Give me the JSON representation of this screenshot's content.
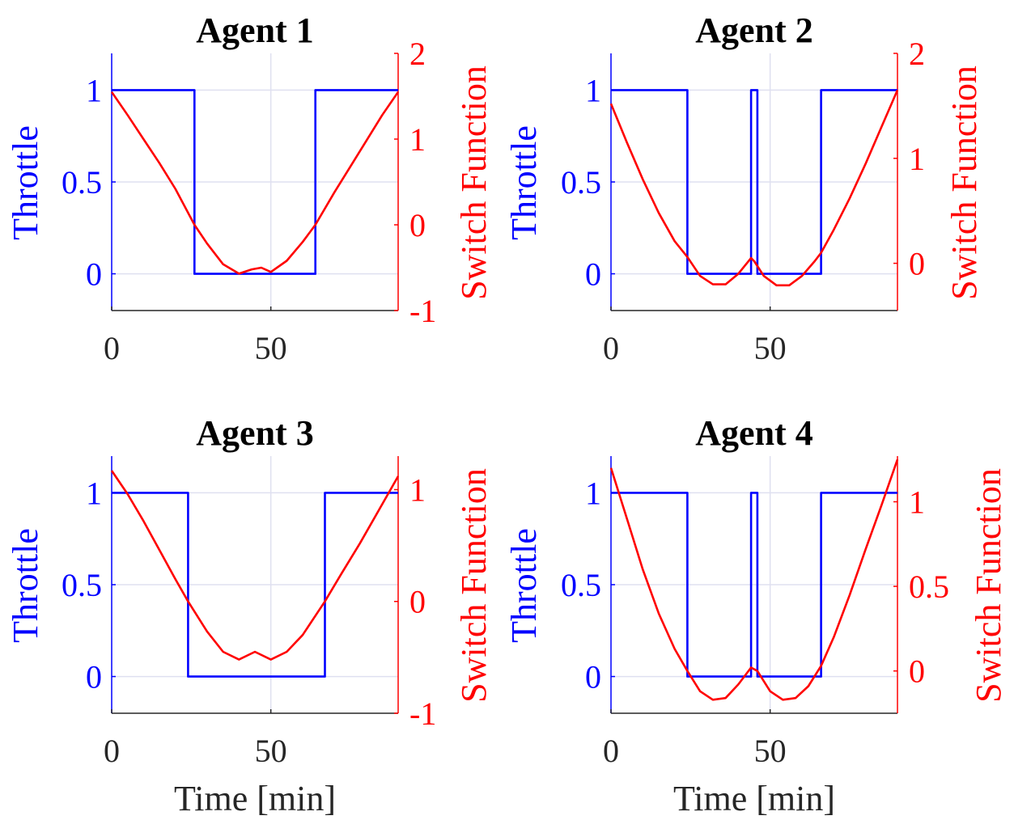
{
  "colors": {
    "throttle": "#0000ff",
    "switch": "#ff0000",
    "axis": "#262626",
    "grid": "#dfe0f0"
  },
  "chart_data": [
    {
      "type": "line",
      "title": "Agent 1",
      "xlabel": "",
      "ylabel_left": "Throttle",
      "ylabel_right": "Switch Function",
      "xlim": [
        0,
        90
      ],
      "xticks": [
        0,
        50
      ],
      "ylim_left": [
        -0.2,
        1.2
      ],
      "yticks_left": [
        0,
        0.5,
        1
      ],
      "ylim_right": [
        -1,
        2
      ],
      "yticks_right": [
        -1,
        0,
        1,
        2
      ],
      "grid": true,
      "series": [
        {
          "name": "Throttle",
          "axis": "left",
          "x": [
            0,
            26,
            26,
            64,
            64,
            90
          ],
          "y": [
            1,
            1,
            0,
            0,
            1,
            1
          ]
        },
        {
          "name": "Switch Function",
          "axis": "right",
          "x": [
            0,
            5,
            10,
            15,
            20,
            26,
            30,
            35,
            40,
            44,
            47,
            50,
            55,
            60,
            64,
            70,
            75,
            80,
            85,
            90
          ],
          "y": [
            1.55,
            1.28,
            1.0,
            0.72,
            0.42,
            0.0,
            -0.22,
            -0.46,
            -0.57,
            -0.52,
            -0.5,
            -0.55,
            -0.42,
            -0.2,
            0.0,
            0.38,
            0.68,
            0.98,
            1.28,
            1.55
          ]
        }
      ]
    },
    {
      "type": "line",
      "title": "Agent 2",
      "xlabel": "",
      "ylabel_left": "Throttle",
      "ylabel_right": "Switch Function",
      "xlim": [
        0,
        90
      ],
      "xticks": [
        0,
        50
      ],
      "ylim_left": [
        -0.2,
        1.2
      ],
      "yticks_left": [
        0,
        0.5,
        1
      ],
      "ylim_right": [
        -0.45,
        2
      ],
      "yticks_right": [
        0,
        1,
        2
      ],
      "grid": true,
      "series": [
        {
          "name": "Throttle",
          "axis": "left",
          "x": [
            0,
            24,
            24,
            44,
            44,
            46,
            46,
            66,
            66,
            90
          ],
          "y": [
            1,
            1,
            0,
            0,
            1,
            1,
            0,
            0,
            1,
            1
          ]
        },
        {
          "name": "Switch Function",
          "axis": "right",
          "x": [
            0,
            5,
            10,
            15,
            20,
            24,
            28,
            32,
            36,
            40,
            44,
            45,
            48,
            52,
            56,
            60,
            64,
            66,
            70,
            75,
            80,
            85,
            90
          ],
          "y": [
            1.52,
            1.15,
            0.8,
            0.48,
            0.21,
            0.06,
            -0.12,
            -0.2,
            -0.2,
            -0.1,
            0.05,
            0.02,
            -0.12,
            -0.21,
            -0.21,
            -0.12,
            0.02,
            0.1,
            0.32,
            0.62,
            0.95,
            1.3,
            1.65
          ]
        }
      ]
    },
    {
      "type": "line",
      "title": "Agent 3",
      "xlabel": "Time [min]",
      "ylabel_left": "Throttle",
      "ylabel_right": "Switch Function",
      "xlim": [
        0,
        90
      ],
      "xticks": [
        0,
        50
      ],
      "ylim_left": [
        -0.2,
        1.2
      ],
      "yticks_left": [
        0,
        0.5,
        1
      ],
      "ylim_right": [
        -1,
        1.3
      ],
      "yticks_right": [
        -1,
        0,
        1
      ],
      "grid": true,
      "series": [
        {
          "name": "Throttle",
          "axis": "left",
          "x": [
            0,
            24,
            24,
            67,
            67,
            90
          ],
          "y": [
            1,
            1,
            0,
            0,
            1,
            1
          ]
        },
        {
          "name": "Switch Function",
          "axis": "right",
          "x": [
            0,
            5,
            10,
            15,
            20,
            24,
            30,
            35,
            40,
            45,
            50,
            55,
            60,
            67,
            72,
            78,
            84,
            90
          ],
          "y": [
            1.17,
            0.96,
            0.72,
            0.46,
            0.2,
            0.0,
            -0.27,
            -0.45,
            -0.52,
            -0.45,
            -0.52,
            -0.45,
            -0.3,
            0.0,
            0.24,
            0.52,
            0.82,
            1.12
          ]
        }
      ]
    },
    {
      "type": "line",
      "title": "Agent 4",
      "xlabel": "Time [min]",
      "ylabel_left": "Throttle",
      "ylabel_right": "Switch Function",
      "xlim": [
        0,
        90
      ],
      "xticks": [
        0,
        50
      ],
      "ylim_left": [
        -0.2,
        1.2
      ],
      "yticks_left": [
        0,
        0.5,
        1
      ],
      "ylim_right": [
        -0.25,
        1.27
      ],
      "yticks_right": [
        0,
        0.5,
        1
      ],
      "grid": true,
      "series": [
        {
          "name": "Throttle",
          "axis": "left",
          "x": [
            0,
            24,
            24,
            44,
            44,
            46,
            46,
            66,
            66,
            90
          ],
          "y": [
            1,
            1,
            0,
            0,
            1,
            1,
            0,
            0,
            1,
            1
          ]
        },
        {
          "name": "Switch Function",
          "axis": "right",
          "x": [
            0,
            5,
            10,
            15,
            20,
            24,
            28,
            32,
            36,
            40,
            44,
            46,
            50,
            54,
            58,
            62,
            66,
            70,
            75,
            80,
            85,
            90
          ],
          "y": [
            1.2,
            0.9,
            0.6,
            0.34,
            0.13,
            0.0,
            -0.12,
            -0.17,
            -0.16,
            -0.08,
            0.02,
            0.0,
            -0.12,
            -0.17,
            -0.16,
            -0.09,
            0.03,
            0.2,
            0.45,
            0.72,
            0.98,
            1.25
          ]
        }
      ]
    }
  ]
}
